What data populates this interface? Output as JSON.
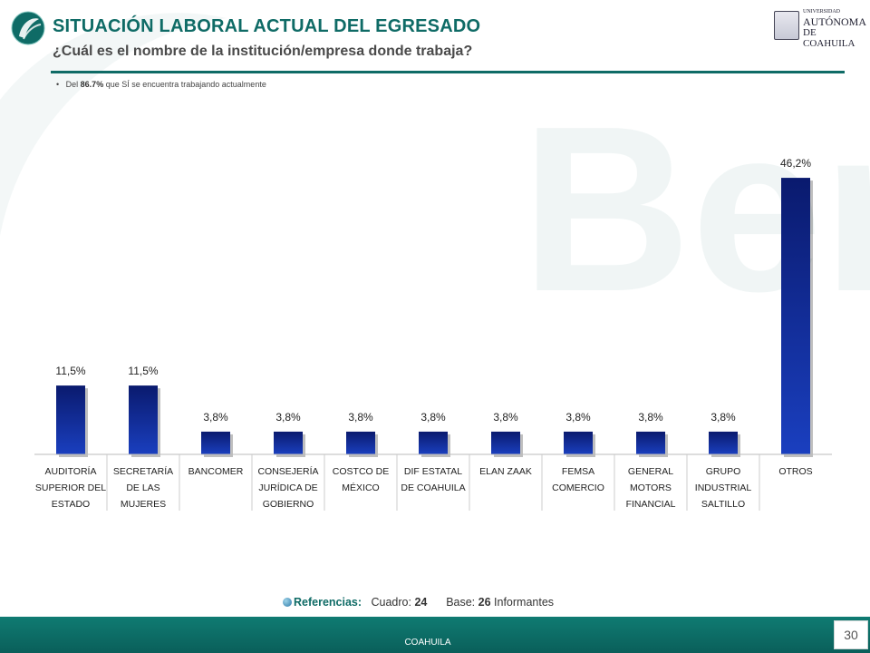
{
  "header": {
    "title": "SITUACIÓN LABORAL ACTUAL DEL EGRESADO",
    "subtitle": "¿Cuál es el nombre de la institución/empresa  donde trabaja?",
    "university_logo": {
      "line1": "UNIVERSIDAD",
      "line2": "AUTÓNOMA",
      "line3": "DE COAHUILA"
    }
  },
  "note": {
    "prefix": "Del ",
    "value": "86.7%",
    "suffix": " que SÍ se encuentra trabajando actualmente"
  },
  "chart_data": {
    "type": "bar",
    "categories": [
      "AUDITORÍA SUPERIOR DEL ESTADO",
      "SECRETARÍA DE LAS MUJERES",
      "BANCOMER",
      "CONSEJERÍA JURÍDICA DE GOBIERNO",
      "COSTCO DE MÉXICO",
      "DIF ESTATAL DE COAHUILA",
      "ELAN ZAAK",
      "FEMSA COMERCIO",
      "GENERAL MOTORS FINANCIAL",
      "GRUPO INDUSTRIAL SALTILLO",
      "OTROS"
    ],
    "category_lines": [
      [
        "AUDITORÍA",
        "SUPERIOR DEL",
        "ESTADO"
      ],
      [
        "SECRETARÍA",
        "DE LAS",
        "MUJERES"
      ],
      [
        "BANCOMER"
      ],
      [
        "CONSEJERÍA",
        "JURÍDICA DE",
        "GOBIERNO"
      ],
      [
        "COSTCO DE",
        "MÉXICO"
      ],
      [
        "DIF ESTATAL",
        "DE COAHUILA"
      ],
      [
        "ELAN ZAAK"
      ],
      [
        "FEMSA",
        "COMERCIO"
      ],
      [
        "GENERAL",
        "MOTORS",
        "FINANCIAL"
      ],
      [
        "GRUPO",
        "INDUSTRIAL",
        "SALTILLO"
      ],
      [
        "OTROS"
      ]
    ],
    "values": [
      11.5,
      11.5,
      3.8,
      3.8,
      3.8,
      3.8,
      3.8,
      3.8,
      3.8,
      3.8,
      46.2
    ],
    "labels": [
      "11,5%",
      "11,5%",
      "3,8%",
      "3,8%",
      "3,8%",
      "3,8%",
      "3,8%",
      "3,8%",
      "3,8%",
      "3,8%",
      "46,2%"
    ],
    "ylim": [
      0,
      50
    ],
    "grid": false,
    "legend": "none",
    "colors": {
      "bar_top": "#0a1a6e",
      "bar_bottom": "#1a3fbf"
    }
  },
  "references": {
    "label": "Referencias:",
    "cuadro_label": "Cuadro:",
    "cuadro_value": "24",
    "base_label": "Base:",
    "base_value": "26",
    "base_suffix": "Informantes"
  },
  "footer": {
    "text": "COAHUILA",
    "page": "30"
  },
  "colors": {
    "accent": "#0f6b66",
    "footer": "#0a6b66"
  }
}
